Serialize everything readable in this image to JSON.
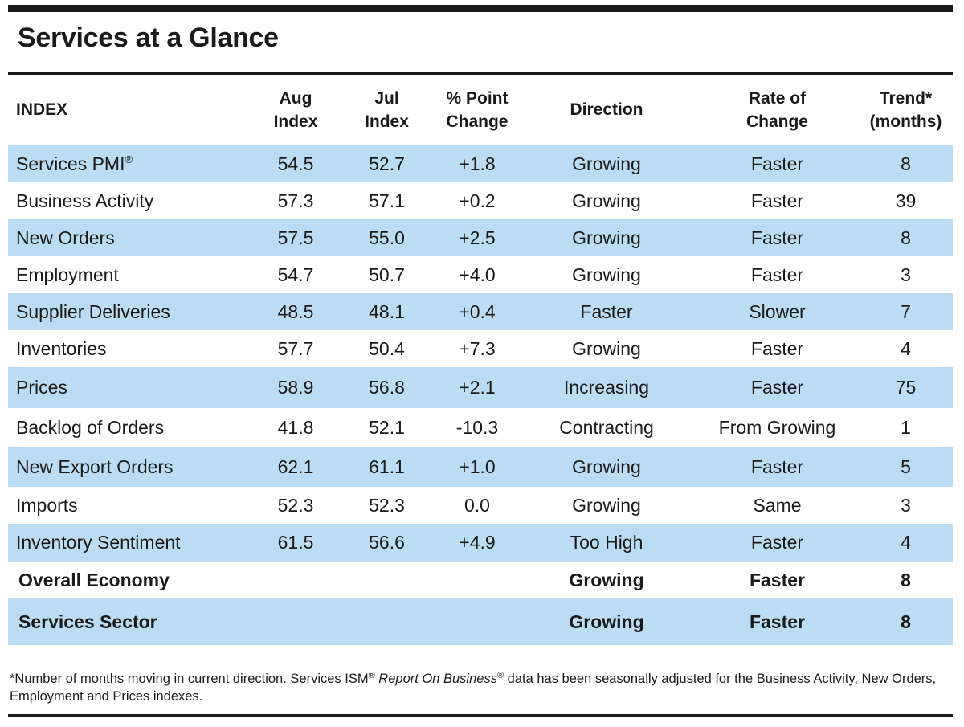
{
  "title": "Services at a Glance",
  "header": {
    "index": "INDEX",
    "aug": [
      "Aug",
      "Index"
    ],
    "jul": [
      "Jul",
      "Index"
    ],
    "change": [
      "% Point",
      "Change"
    ],
    "direction": "Direction",
    "rate": [
      "Rate of",
      "Change"
    ],
    "trend": [
      "Trend*",
      "(months)"
    ]
  },
  "rows": [
    {
      "index": "Services PMI",
      "mark": "®",
      "aug": "54.5",
      "jul": "52.7",
      "change": "+1.8",
      "direction": "Growing",
      "rate": "Faster",
      "trend": "8"
    },
    {
      "index": "Business Activity",
      "aug": "57.3",
      "jul": "57.1",
      "change": "+0.2",
      "direction": "Growing",
      "rate": "Faster",
      "trend": "39"
    },
    {
      "index": "New Orders",
      "aug": "57.5",
      "jul": "55.0",
      "change": "+2.5",
      "direction": "Growing",
      "rate": "Faster",
      "trend": "8"
    },
    {
      "index": "Employment",
      "aug": "54.7",
      "jul": "50.7",
      "change": "+4.0",
      "direction": "Growing",
      "rate": "Faster",
      "trend": "3"
    },
    {
      "index": "Supplier Deliveries",
      "aug": "48.5",
      "jul": "48.1",
      "change": "+0.4",
      "direction": "Faster",
      "rate": "Slower",
      "trend": "7"
    },
    {
      "index": "Inventories",
      "aug": "57.7",
      "jul": "50.4",
      "change": "+7.3",
      "direction": "Growing",
      "rate": "Faster",
      "trend": "4"
    },
    {
      "index": "Prices",
      "aug": "58.9",
      "jul": "56.8",
      "change": "+2.1",
      "direction": "Increasing",
      "rate": "Faster",
      "trend": "75"
    },
    {
      "index": "Backlog of Orders",
      "aug": "41.8",
      "jul": "52.1",
      "change": "-10.3",
      "direction": "Contracting",
      "rate": "From Growing",
      "trend": "1"
    },
    {
      "index": "New Export Orders",
      "aug": "62.1",
      "jul": "61.1",
      "change": "+1.0",
      "direction": "Growing",
      "rate": "Faster",
      "trend": "5"
    },
    {
      "index": "Imports",
      "aug": "52.3",
      "jul": "52.3",
      "change": "0.0",
      "direction": "Growing",
      "rate": "Same",
      "trend": "3"
    },
    {
      "index": "Inventory Sentiment",
      "aug": "61.5",
      "jul": "56.6",
      "change": "+4.9",
      "direction": "Too High",
      "rate": "Faster",
      "trend": "4"
    }
  ],
  "summary": [
    {
      "index": "Overall Economy",
      "direction": "Growing",
      "rate": "Faster",
      "trend": "8"
    },
    {
      "index": "Services Sector",
      "direction": "Growing",
      "rate": "Faster",
      "trend": "8"
    }
  ],
  "footnote": {
    "part1": "*Number of months moving in current direction. Services ISM",
    "mark1": "®",
    "italic": "Report On Business",
    "mark2": "®",
    "part2": " data has been seasonally adjusted for the Business Activity, New Orders, Employment and Prices indexes."
  },
  "colors": {
    "shade": "#bbdcf2",
    "rule": "#1a1a1a",
    "text": "#1a1a1a"
  }
}
